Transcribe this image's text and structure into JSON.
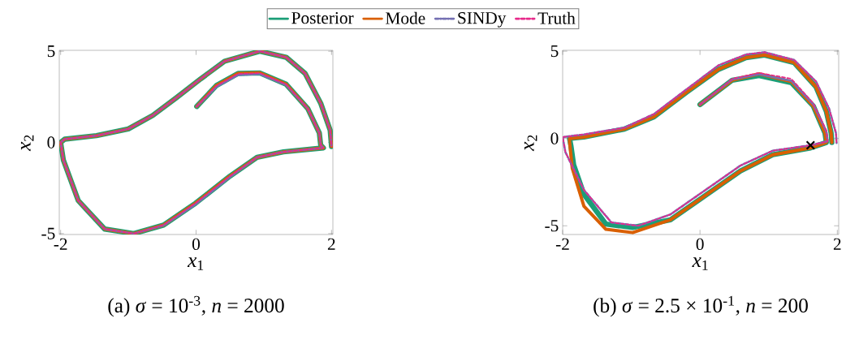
{
  "chart_data": [
    {
      "type": "line",
      "xlabel": "*x*$_{1}$",
      "ylabel": "*x*$_{2}$",
      "xlim": [
        -2.02,
        2.02
      ],
      "ylim": [
        -5.05,
        5.05
      ],
      "xticks": [
        -2,
        0,
        2
      ],
      "yticks": [
        -5,
        0,
        5
      ],
      "legend": "top",
      "grid": false,
      "marker": "none",
      "annotations": [
        "(a) *σ* = 10$^{-3}$, *n* = 2000"
      ],
      "series": [
        {
          "name": "Posterior",
          "color": "#1b9e77",
          "line_style": "solid",
          "x": [
            0.01,
            0.3,
            0.62,
            0.94,
            1.33,
            1.65,
            1.82,
            1.84,
            1.88,
            1.29,
            0.9,
            0.5,
            -0.01,
            -0.48,
            -0.92,
            -1.35,
            -1.74,
            -1.96,
            -2.0,
            -1.94,
            -1.47,
            -1.0,
            -0.64,
            -0.29,
            0.07,
            0.42,
            0.94,
            1.33,
            1.61,
            1.84,
            1.98,
            2.0
          ],
          "values": [
            1.97,
            3.12,
            3.78,
            3.81,
            3.19,
            1.85,
            0.52,
            -0.15,
            -0.3,
            -0.52,
            -0.82,
            -1.85,
            -3.34,
            -4.53,
            -5.0,
            -4.75,
            -3.19,
            -0.96,
            0.0,
            0.18,
            0.37,
            0.74,
            1.48,
            2.45,
            3.49,
            4.45,
            5.0,
            4.67,
            3.78,
            2.15,
            0.67,
            -0.22
          ]
        },
        {
          "name": "Mode",
          "color": "#d95f02",
          "line_style": "solid",
          "x": [
            0.01,
            0.3,
            0.62,
            0.94,
            1.33,
            1.65,
            1.82,
            1.84,
            1.88,
            1.29,
            0.9,
            0.5,
            -0.01,
            -0.48,
            -0.92,
            -1.35,
            -1.74,
            -1.96,
            -2.0,
            -1.94,
            -1.47,
            -1.0,
            -0.64,
            -0.29,
            0.07,
            0.42,
            0.94,
            1.33,
            1.61,
            1.84,
            1.98,
            2.0
          ],
          "values": [
            1.97,
            3.12,
            3.78,
            3.81,
            3.19,
            1.85,
            0.52,
            -0.15,
            -0.3,
            -0.52,
            -0.82,
            -1.85,
            -3.34,
            -4.53,
            -5.0,
            -4.75,
            -3.19,
            -0.96,
            0.0,
            0.18,
            0.37,
            0.74,
            1.48,
            2.45,
            3.49,
            4.45,
            5.0,
            4.67,
            3.78,
            2.15,
            0.67,
            -0.22
          ]
        },
        {
          "name": "SINDy",
          "color": "#7570b3",
          "line_style": "dashdot",
          "x": [
            0.01,
            0.3,
            0.62,
            0.94,
            1.33,
            1.65,
            1.82,
            1.84,
            1.88,
            1.29,
            0.9,
            0.5,
            -0.01,
            -0.48,
            -0.92,
            -1.35,
            -1.74,
            -1.96,
            -2.0,
            -1.94,
            -1.47,
            -1.0,
            -0.64,
            -0.29,
            0.07,
            0.42,
            0.94,
            1.33,
            1.61,
            1.84,
            1.98,
            2.0
          ],
          "values": [
            1.97,
            3.05,
            3.7,
            3.75,
            3.15,
            1.85,
            0.52,
            -0.15,
            -0.3,
            -0.52,
            -0.82,
            -1.9,
            -3.4,
            -4.55,
            -5.0,
            -4.75,
            -3.19,
            -0.96,
            0.0,
            0.18,
            0.37,
            0.74,
            1.48,
            2.45,
            3.49,
            4.45,
            5.0,
            4.67,
            3.78,
            2.15,
            0.67,
            -0.22
          ]
        },
        {
          "name": "Truth",
          "color": "#e7298a",
          "line_style": "dashed",
          "x": [
            0.01,
            0.3,
            0.62,
            0.94,
            1.33,
            1.65,
            1.82,
            1.84,
            1.88,
            1.29,
            0.9,
            0.5,
            -0.01,
            -0.48,
            -0.92,
            -1.35,
            -1.74,
            -1.96,
            -2.0,
            -1.94,
            -1.47,
            -1.0,
            -0.64,
            -0.29,
            0.07,
            0.42,
            0.94,
            1.33,
            1.61,
            1.84,
            1.98,
            2.0
          ],
          "values": [
            1.97,
            3.1,
            3.76,
            3.8,
            3.18,
            1.85,
            0.52,
            -0.15,
            -0.3,
            -0.52,
            -0.82,
            -1.85,
            -3.34,
            -4.53,
            -5.0,
            -4.75,
            -3.19,
            -0.96,
            0.0,
            0.18,
            0.37,
            0.74,
            1.48,
            2.45,
            3.49,
            4.45,
            5.0,
            4.67,
            3.78,
            2.15,
            0.67,
            -0.22
          ]
        }
      ]
    },
    {
      "type": "line",
      "xlabel": "*x*$_{1}$",
      "ylabel": "*x*$_{2}$",
      "xlim": [
        -2.0,
        2.02
      ],
      "ylim": [
        -5.5,
        5.05
      ],
      "xticks": [
        -2,
        0,
        2
      ],
      "yticks": [
        -5,
        0,
        5
      ],
      "grid": false,
      "marker": "none",
      "annotations": [
        "(b) *σ* = 2.5 × 10$^{-1}$, *n* = 200"
      ],
      "series": [
        {
          "color": "#1b9e77",
          "line_style": "solid",
          "x": [
            0.0,
            0.47,
            0.86,
            1.33,
            1.65,
            1.82,
            1.84,
            1.61,
            1.06,
            0.59,
            0.08,
            -0.43,
            -0.98,
            -1.37,
            -1.69,
            -1.84,
            -1.88,
            -1.9,
            -1.69,
            -1.1,
            -0.67,
            -0.2,
            0.27,
            0.67,
            0.94,
            1.37,
            1.69,
            1.84,
            1.91,
            1.92
          ],
          "values": [
            1.94,
            3.34,
            3.6,
            3.2,
            1.86,
            0.31,
            -0.23,
            -0.54,
            -0.93,
            -1.86,
            -3.26,
            -4.66,
            -5.1,
            -4.9,
            -3.2,
            -1.5,
            -0.4,
            0.0,
            0.08,
            0.54,
            1.24,
            2.64,
            3.96,
            4.63,
            4.78,
            4.35,
            2.95,
            1.55,
            0.31,
            -0.23
          ]
        },
        {
          "color": "#d95f02",
          "line_style": "solid",
          "x": [
            0.0,
            0.47,
            0.86,
            1.33,
            1.65,
            1.82,
            1.84,
            1.61,
            1.06,
            0.59,
            0.08,
            -0.43,
            -0.98,
            -1.37,
            -1.69,
            -1.86,
            -1.9,
            -1.9,
            -1.69,
            -1.1,
            -0.67,
            -0.2,
            0.27,
            0.67,
            0.94,
            1.37,
            1.69,
            1.84,
            1.91,
            1.92
          ],
          "values": [
            1.94,
            3.34,
            3.7,
            3.26,
            1.86,
            0.31,
            -0.23,
            -0.54,
            -0.93,
            -1.86,
            -3.26,
            -4.66,
            -5.39,
            -5.2,
            -3.88,
            -1.71,
            -0.16,
            0.0,
            0.08,
            0.54,
            1.24,
            2.64,
            3.96,
            4.63,
            4.78,
            4.35,
            2.95,
            1.55,
            0.31,
            -0.23
          ]
        },
        {
          "color": "#7570b3",
          "line_style": "dashdot",
          "x": [
            0.0,
            0.47,
            0.86,
            1.33,
            1.65,
            1.84,
            1.86,
            1.61,
            1.06,
            0.59,
            0.08,
            -0.43,
            -0.9,
            -1.29,
            -1.69,
            -1.96,
            -2.0,
            -1.69,
            -1.1,
            -0.67,
            -0.2,
            0.27,
            0.67,
            0.94,
            1.37,
            1.69,
            1.88,
            1.98,
            1.99
          ],
          "values": [
            1.94,
            3.38,
            3.68,
            3.3,
            1.95,
            0.4,
            -0.16,
            -0.39,
            -0.7,
            -1.55,
            -2.95,
            -4.35,
            -5.0,
            -4.81,
            -2.95,
            -0.78,
            0.08,
            0.23,
            0.62,
            1.4,
            2.8,
            4.19,
            4.81,
            4.94,
            4.5,
            3.26,
            1.71,
            0.31,
            -0.28
          ]
        },
        {
          "color": "#e7298a",
          "line_style": "dashed",
          "x": [
            0.0,
            0.47,
            0.86,
            1.33,
            1.65,
            1.84,
            1.86,
            1.61,
            1.06,
            0.59,
            0.08,
            -0.43,
            -0.9,
            -1.29,
            -1.69,
            -1.96,
            -2.0,
            -1.69,
            -1.1,
            -0.67,
            -0.2,
            0.27,
            0.67,
            0.94,
            1.37,
            1.69,
            1.88,
            1.98,
            1.99
          ],
          "values": [
            1.94,
            3.42,
            3.76,
            3.42,
            2.02,
            0.47,
            -0.16,
            -0.39,
            -0.7,
            -1.55,
            -2.95,
            -4.35,
            -5.0,
            -4.81,
            -2.95,
            -0.78,
            0.08,
            0.23,
            0.62,
            1.4,
            2.8,
            4.19,
            4.81,
            4.94,
            4.5,
            3.26,
            1.71,
            0.31,
            -0.28
          ]
        },
        {
          "type": "scatter",
          "color": "#000000",
          "marker": "cross",
          "x": [
            1.61
          ],
          "values": [
            -0.39
          ]
        }
      ]
    }
  ]
}
